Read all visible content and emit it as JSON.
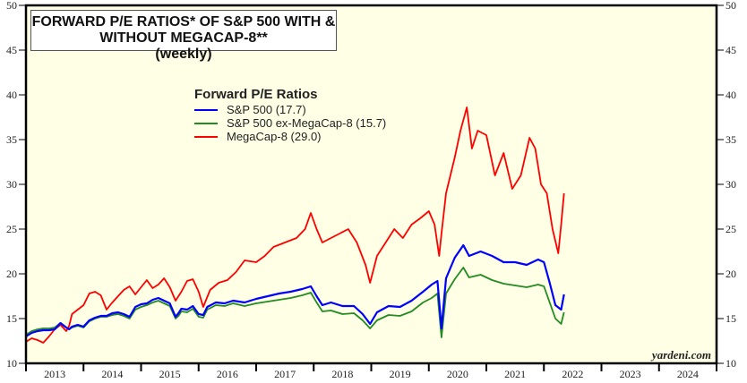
{
  "chart_data": {
    "type": "line",
    "title": "FORWARD P/E RATIOS* OF S&P 500 WITH & WITHOUT MEGACAP-8**",
    "subtitle": "(weekly)",
    "xlabel": "",
    "ylabel": "",
    "xlim": [
      2013,
      2025
    ],
    "ylim": [
      10,
      50
    ],
    "y_ticks": [
      10,
      15,
      20,
      25,
      30,
      35,
      40,
      45,
      50
    ],
    "x_tick_labels": [
      "2013",
      "2014",
      "2015",
      "2016",
      "2017",
      "2018",
      "2019",
      "2020",
      "2021",
      "2022",
      "2023",
      "2024"
    ],
    "grid": false,
    "legend": {
      "title": "Forward P/E Ratios",
      "placement": "top-left-center"
    },
    "source": "yardeni.com",
    "series": [
      {
        "name": "S&P 500 (17.7)",
        "color": "#0000ff",
        "x": [
          2013.0,
          2013.1,
          2013.2,
          2013.3,
          2013.4,
          2013.5,
          2013.6,
          2013.7,
          2013.75,
          2013.8,
          2013.9,
          2014.0,
          2014.1,
          2014.2,
          2014.3,
          2014.4,
          2014.5,
          2014.6,
          2014.7,
          2014.8,
          2014.9,
          2015.0,
          2015.1,
          2015.2,
          2015.3,
          2015.4,
          2015.5,
          2015.6,
          2015.65,
          2015.7,
          2015.8,
          2015.9,
          2016.0,
          2016.08,
          2016.15,
          2016.3,
          2016.45,
          2016.6,
          2016.8,
          2017.0,
          2017.2,
          2017.4,
          2017.6,
          2017.8,
          2017.95,
          2018.05,
          2018.15,
          2018.3,
          2018.5,
          2018.7,
          2018.85,
          2018.98,
          2019.1,
          2019.3,
          2019.5,
          2019.7,
          2019.9,
          2020.05,
          2020.15,
          2020.22,
          2020.3,
          2020.45,
          2020.6,
          2020.7,
          2020.9,
          2021.1,
          2021.3,
          2021.5,
          2021.7,
          2021.9,
          2022.0,
          2022.1,
          2022.2,
          2022.3,
          2022.35
        ],
        "values": [
          13.0,
          13.4,
          13.6,
          13.7,
          13.7,
          13.8,
          14.5,
          14.0,
          13.8,
          14.1,
          14.3,
          14.1,
          14.8,
          15.1,
          15.3,
          15.3,
          15.6,
          15.7,
          15.5,
          15.2,
          16.3,
          16.6,
          16.7,
          17.1,
          17.3,
          17.0,
          16.7,
          15.2,
          15.6,
          16.1,
          16.0,
          16.4,
          15.5,
          15.4,
          16.3,
          16.8,
          16.7,
          17.0,
          16.8,
          17.2,
          17.5,
          17.8,
          18.0,
          18.3,
          18.6,
          17.5,
          16.5,
          16.8,
          16.4,
          16.4,
          15.5,
          14.4,
          15.7,
          16.4,
          16.3,
          17.0,
          18.0,
          18.8,
          19.2,
          13.9,
          19.5,
          21.8,
          23.2,
          22.0,
          22.5,
          22.0,
          21.3,
          21.3,
          21.0,
          21.6,
          21.3,
          19.0,
          16.5,
          16.0,
          17.7
        ]
      },
      {
        "name": "S&P 500 ex-MegaCap-8 (15.7)",
        "color": "#228b22",
        "x": [
          2013.0,
          2013.1,
          2013.2,
          2013.3,
          2013.4,
          2013.5,
          2013.6,
          2013.7,
          2013.75,
          2013.8,
          2013.9,
          2014.0,
          2014.1,
          2014.2,
          2014.3,
          2014.4,
          2014.5,
          2014.6,
          2014.7,
          2014.8,
          2014.9,
          2015.0,
          2015.1,
          2015.2,
          2015.3,
          2015.4,
          2015.5,
          2015.6,
          2015.65,
          2015.7,
          2015.8,
          2015.9,
          2016.0,
          2016.08,
          2016.15,
          2016.3,
          2016.45,
          2016.6,
          2016.8,
          2017.0,
          2017.2,
          2017.4,
          2017.6,
          2017.8,
          2017.95,
          2018.05,
          2018.15,
          2018.3,
          2018.5,
          2018.7,
          2018.85,
          2018.98,
          2019.1,
          2019.3,
          2019.5,
          2019.7,
          2019.9,
          2020.05,
          2020.15,
          2020.22,
          2020.3,
          2020.45,
          2020.6,
          2020.7,
          2020.9,
          2021.1,
          2021.3,
          2021.5,
          2021.7,
          2021.9,
          2022.0,
          2022.1,
          2022.2,
          2022.3,
          2022.35
        ],
        "values": [
          13.2,
          13.6,
          13.8,
          13.9,
          13.9,
          14.0,
          14.5,
          14.0,
          13.8,
          14.0,
          14.2,
          14.0,
          14.7,
          15.0,
          15.2,
          15.2,
          15.4,
          15.5,
          15.3,
          15.0,
          16.0,
          16.3,
          16.5,
          16.8,
          17.0,
          16.7,
          16.4,
          15.0,
          15.3,
          15.8,
          15.7,
          16.1,
          15.2,
          15.1,
          16.0,
          16.5,
          16.4,
          16.7,
          16.4,
          16.7,
          16.9,
          17.1,
          17.3,
          17.6,
          17.9,
          16.8,
          15.8,
          15.9,
          15.5,
          15.6,
          14.8,
          13.9,
          14.8,
          15.4,
          15.3,
          15.8,
          16.8,
          17.3,
          17.8,
          12.9,
          17.8,
          19.4,
          20.7,
          19.6,
          19.9,
          19.3,
          18.9,
          18.7,
          18.5,
          18.8,
          18.6,
          16.8,
          15.0,
          14.4,
          15.7
        ]
      },
      {
        "name": "MegaCap-8 (29.0)",
        "color": "#ff0000",
        "x": [
          2013.0,
          2013.1,
          2013.2,
          2013.3,
          2013.4,
          2013.5,
          2013.6,
          2013.7,
          2013.75,
          2013.8,
          2013.9,
          2014.0,
          2014.1,
          2014.2,
          2014.3,
          2014.4,
          2014.5,
          2014.6,
          2014.7,
          2014.8,
          2014.9,
          2015.0,
          2015.1,
          2015.2,
          2015.3,
          2015.4,
          2015.5,
          2015.6,
          2015.7,
          2015.8,
          2015.9,
          2016.0,
          2016.08,
          2016.2,
          2016.35,
          2016.5,
          2016.65,
          2016.8,
          2017.0,
          2017.15,
          2017.3,
          2017.5,
          2017.7,
          2017.85,
          2017.95,
          2018.05,
          2018.15,
          2018.3,
          2018.45,
          2018.6,
          2018.75,
          2018.9,
          2018.98,
          2019.1,
          2019.25,
          2019.4,
          2019.55,
          2019.7,
          2019.85,
          2020.0,
          2020.1,
          2020.18,
          2020.22,
          2020.3,
          2020.45,
          2020.55,
          2020.66,
          2020.75,
          2020.85,
          2021.0,
          2021.15,
          2021.3,
          2021.45,
          2021.6,
          2021.75,
          2021.85,
          2021.95,
          2022.05,
          2022.15,
          2022.25,
          2022.3,
          2022.35
        ],
        "values": [
          12.4,
          12.8,
          12.6,
          12.3,
          13.0,
          13.8,
          14.3,
          13.6,
          14.2,
          15.5,
          16.0,
          16.5,
          17.8,
          18.0,
          17.6,
          16.0,
          16.8,
          17.5,
          18.2,
          18.6,
          17.7,
          18.5,
          19.3,
          18.4,
          18.8,
          19.5,
          18.5,
          17.0,
          18.0,
          19.2,
          19.4,
          18.0,
          16.3,
          18.2,
          19.0,
          19.3,
          20.2,
          21.5,
          21.3,
          22.0,
          23.0,
          23.5,
          24.0,
          25.0,
          26.8,
          25.0,
          23.5,
          24.0,
          24.5,
          25.0,
          23.5,
          21.0,
          19.0,
          22.0,
          23.5,
          25.0,
          24.0,
          25.5,
          26.2,
          27.0,
          25.5,
          22.0,
          24.5,
          29.0,
          33.0,
          36.0,
          38.6,
          34.0,
          36.0,
          35.5,
          31.0,
          33.5,
          29.5,
          31.0,
          35.2,
          34.0,
          30.0,
          29.0,
          25.0,
          22.3,
          25.5,
          29.0
        ]
      }
    ]
  }
}
